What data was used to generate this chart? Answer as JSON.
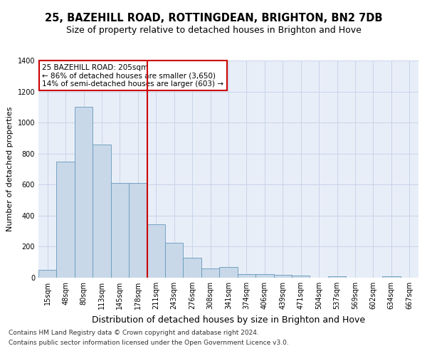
{
  "title": "25, BAZEHILL ROAD, ROTTINGDEAN, BRIGHTON, BN2 7DB",
  "subtitle": "Size of property relative to detached houses in Brighton and Hove",
  "xlabel": "Distribution of detached houses by size in Brighton and Hove",
  "ylabel": "Number of detached properties",
  "footer1": "Contains HM Land Registry data © Crown copyright and database right 2024.",
  "footer2": "Contains public sector information licensed under the Open Government Licence v3.0.",
  "annotation_line1": "25 BAZEHILL ROAD: 205sqm",
  "annotation_line2": "← 86% of detached houses are smaller (3,650)",
  "annotation_line3": "14% of semi-detached houses are larger (603) →",
  "bar_labels": [
    "15sqm",
    "48sqm",
    "80sqm",
    "113sqm",
    "145sqm",
    "178sqm",
    "211sqm",
    "243sqm",
    "276sqm",
    "308sqm",
    "341sqm",
    "374sqm",
    "406sqm",
    "439sqm",
    "471sqm",
    "504sqm",
    "537sqm",
    "569sqm",
    "602sqm",
    "634sqm",
    "667sqm"
  ],
  "bar_values": [
    50,
    750,
    1100,
    860,
    610,
    610,
    345,
    225,
    130,
    60,
    70,
    25,
    25,
    20,
    15,
    0,
    10,
    0,
    0,
    10,
    0
  ],
  "bar_color": "#c8d8e8",
  "bar_edge_color": "#6699bb",
  "vline_color": "#cc0000",
  "vline_x_index": 6,
  "ylim": [
    0,
    1400
  ],
  "yticks": [
    0,
    200,
    400,
    600,
    800,
    1000,
    1200,
    1400
  ],
  "grid_color": "#c8d4e8",
  "bg_color": "#e8eef8",
  "box_color": "#cc0000",
  "title_fontsize": 10.5,
  "subtitle_fontsize": 9,
  "ylabel_fontsize": 8,
  "xlabel_fontsize": 9,
  "tick_fontsize": 7,
  "annotation_fontsize": 7.5,
  "footer_fontsize": 6.5
}
